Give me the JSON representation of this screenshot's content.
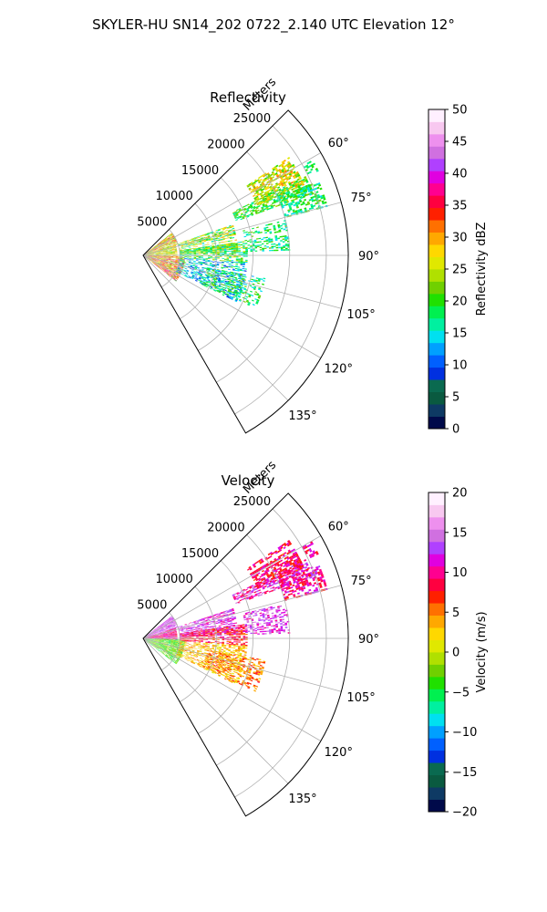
{
  "figure": {
    "title": "SKYLER-HU  SN14_202  0722_2.140 UTC Elevation 12°"
  },
  "panels": [
    {
      "key": "reflectivity",
      "title": "Reflectivity",
      "range_unit_label": "Meters",
      "range_ticks": [
        "5000",
        "10000",
        "15000",
        "20000",
        "25000"
      ],
      "azimuth_ticks": [
        "60°",
        "75°",
        "90°",
        "105°",
        "120°",
        "135°"
      ],
      "colorbar": {
        "label": "Reflectivity dBZ",
        "ticks": [
          "0",
          "5",
          "10",
          "15",
          "20",
          "25",
          "30",
          "35",
          "40",
          "45",
          "50"
        ]
      }
    },
    {
      "key": "velocity",
      "title": "Velocity",
      "range_unit_label": "Meters",
      "range_ticks": [
        "5000",
        "10000",
        "15000",
        "20000",
        "25000"
      ],
      "azimuth_ticks": [
        "60°",
        "75°",
        "90°",
        "105°",
        "120°",
        "135°"
      ],
      "colorbar": {
        "label": "Velocity (m/s)",
        "ticks": [
          "−20",
          "−15",
          "−10",
          "−5",
          "0",
          "5",
          "10",
          "15",
          "20"
        ]
      }
    }
  ],
  "chart_data": [
    {
      "type": "heatmap",
      "subtype": "polar-sector radar PPI",
      "title": "Reflectivity",
      "theta_range_deg": [
        45,
        150
      ],
      "r_range_m": [
        0,
        28000
      ],
      "r_ticks_m": [
        5000,
        10000,
        15000,
        20000,
        25000
      ],
      "theta_ticks_deg": [
        60,
        75,
        90,
        105,
        120,
        135
      ],
      "colorbar": {
        "label": "Reflectivity dBZ",
        "range": [
          0,
          50
        ],
        "ticks": [
          0,
          5,
          10,
          15,
          20,
          25,
          30,
          35,
          40,
          45,
          50
        ]
      },
      "grid": true,
      "colors": [
        "#000a4a",
        "#0e3a64",
        "#0a5a40",
        "#0a6a50",
        "#0030e0",
        "#0060ff",
        "#00a0ff",
        "#00e0f0",
        "#00f0a0",
        "#00f050",
        "#20e000",
        "#70d000",
        "#b0e000",
        "#e0e800",
        "#ffd800",
        "#ffa800",
        "#ff7000",
        "#ff2000",
        "#ff0040",
        "#ff0090",
        "#e000e0",
        "#b040ff",
        "#d070e0",
        "#ee90ee",
        "#f8c8f0",
        "#fff0ff"
      ],
      "echo_regions": [
        {
          "th": [
            52,
            72
          ],
          "r": [
            200,
            5000
          ],
          "base": 28,
          "var": 8,
          "density": 0.9
        },
        {
          "th": [
            72,
            92
          ],
          "r": [
            200,
            4500
          ],
          "base": 26,
          "var": 6,
          "density": 0.85
        },
        {
          "th": [
            92,
            128
          ],
          "r": [
            300,
            5500
          ],
          "base": 30,
          "var": 10,
          "density": 0.75
        },
        {
          "th": [
            71,
            88
          ],
          "r": [
            5000,
            13000
          ],
          "base": 22,
          "var": 8,
          "density": 0.7
        },
        {
          "th": [
            82,
            94
          ],
          "r": [
            5000,
            14000
          ],
          "base": 20,
          "var": 7,
          "density": 0.55
        },
        {
          "th": [
            94,
            116
          ],
          "r": [
            5000,
            14000
          ],
          "base": 14,
          "var": 6,
          "density": 0.5
        },
        {
          "th": [
            100,
            115
          ],
          "r": [
            9000,
            17000
          ],
          "base": 18,
          "var": 5,
          "density": 0.4
        },
        {
          "th": [
            64,
            70
          ],
          "r": [
            13500,
            24500
          ],
          "base": 20,
          "var": 4,
          "density": 0.6
        },
        {
          "th": [
            56,
            66
          ],
          "r": [
            17000,
            24000
          ],
          "base": 26,
          "var": 6,
          "density": 0.65
        },
        {
          "th": [
            67,
            75
          ],
          "r": [
            20000,
            26000
          ],
          "base": 18,
          "var": 4,
          "density": 0.55
        },
        {
          "th": [
            76,
            88
          ],
          "r": [
            14000,
            20000
          ],
          "base": 18,
          "var": 4,
          "density": 0.45
        },
        {
          "th": [
            60,
            64
          ],
          "r": [
            25000,
            26500
          ],
          "base": 18,
          "var": 3,
          "density": 0.5
        }
      ]
    },
    {
      "type": "heatmap",
      "subtype": "polar-sector radar PPI",
      "title": "Velocity",
      "theta_range_deg": [
        45,
        150
      ],
      "r_range_m": [
        0,
        28000
      ],
      "r_ticks_m": [
        5000,
        10000,
        15000,
        20000,
        25000
      ],
      "theta_ticks_deg": [
        60,
        75,
        90,
        105,
        120,
        135
      ],
      "colorbar": {
        "label": "Velocity (m/s)",
        "range": [
          -20,
          20
        ],
        "ticks": [
          -20,
          -15,
          -10,
          -5,
          0,
          5,
          10,
          15,
          20
        ]
      },
      "grid": true,
      "colors": [
        "#000a4a",
        "#0e3a64",
        "#0a5a40",
        "#0a6a50",
        "#0030e0",
        "#0060ff",
        "#00a0ff",
        "#00e0f0",
        "#00f0a0",
        "#00f050",
        "#20e000",
        "#70d000",
        "#b0e000",
        "#e0e800",
        "#ffd800",
        "#ffa800",
        "#ff7000",
        "#ff2000",
        "#ff0040",
        "#ff0090",
        "#e000e0",
        "#b040ff",
        "#d070e0",
        "#ee90ee",
        "#f8c8f0",
        "#fff0ff"
      ],
      "echo_regions": [
        {
          "th": [
            52,
            72
          ],
          "r": [
            200,
            5000
          ],
          "base": 14,
          "var": 3,
          "density": 0.9
        },
        {
          "th": [
            72,
            92
          ],
          "r": [
            200,
            4500
          ],
          "base": 10,
          "var": 3,
          "density": 0.85
        },
        {
          "th": [
            92,
            128
          ],
          "r": [
            300,
            5500
          ],
          "base": -3,
          "var": 3,
          "density": 0.75
        },
        {
          "th": [
            71,
            88
          ],
          "r": [
            5000,
            13000
          ],
          "base": 13,
          "var": 3,
          "density": 0.7
        },
        {
          "th": [
            82,
            94
          ],
          "r": [
            5000,
            14000
          ],
          "base": 8,
          "var": 3,
          "density": 0.55
        },
        {
          "th": [
            94,
            116
          ],
          "r": [
            5000,
            14000
          ],
          "base": 3,
          "var": 3,
          "density": 0.5
        },
        {
          "th": [
            100,
            115
          ],
          "r": [
            9000,
            17000
          ],
          "base": 5,
          "var": 3,
          "density": 0.4
        },
        {
          "th": [
            64,
            70
          ],
          "r": [
            13500,
            24500
          ],
          "base": 12,
          "var": 4,
          "density": 0.6
        },
        {
          "th": [
            56,
            66
          ],
          "r": [
            17000,
            24000
          ],
          "base": 9,
          "var": 3,
          "density": 0.65
        },
        {
          "th": [
            67,
            75
          ],
          "r": [
            20000,
            26000
          ],
          "base": 10,
          "var": 3,
          "density": 0.55
        },
        {
          "th": [
            76,
            88
          ],
          "r": [
            14000,
            20000
          ],
          "base": 13,
          "var": 3,
          "density": 0.45
        },
        {
          "th": [
            60,
            64
          ],
          "r": [
            25000,
            26500
          ],
          "base": 9,
          "var": 3,
          "density": 0.5
        }
      ]
    }
  ]
}
